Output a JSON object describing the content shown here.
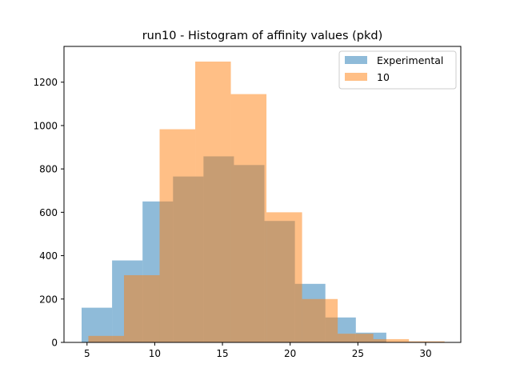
{
  "chart_data": {
    "type": "histogram",
    "title": "run10 - Histogram of affinity values (pkd)",
    "xlabel": "",
    "ylabel": "",
    "xlim": [
      3.3,
      32.6
    ],
    "ylim": [
      0,
      1365
    ],
    "xticks": [
      5,
      10,
      15,
      20,
      25,
      30
    ],
    "yticks": [
      0,
      200,
      400,
      600,
      800,
      1000,
      1200
    ],
    "legend_position": "top-right",
    "series": [
      {
        "name": "Experimental",
        "color": "#1f77b4",
        "alpha": 0.5,
        "bin_edges": [
          4.6,
          6.85,
          9.1,
          11.35,
          13.6,
          15.85,
          18.1,
          20.35,
          22.6,
          24.85,
          27.1
        ],
        "counts": [
          160,
          378,
          650,
          765,
          858,
          818,
          560,
          270,
          115,
          45
        ]
      },
      {
        "name": "10",
        "color": "#ff7f0e",
        "alpha": 0.5,
        "bin_edges": [
          5.1,
          7.73,
          10.36,
          12.99,
          15.62,
          18.25,
          20.88,
          23.51,
          26.14,
          28.77,
          31.4
        ],
        "counts": [
          30,
          310,
          983,
          1295,
          1145,
          600,
          200,
          40,
          15,
          5
        ]
      }
    ]
  }
}
